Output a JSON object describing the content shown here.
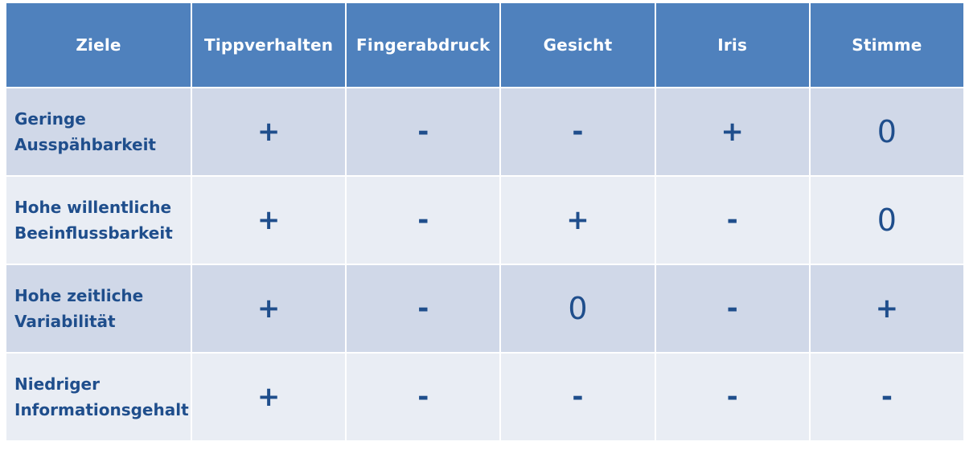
{
  "table": {
    "headers": [
      "Ziele",
      "Tippverhalten",
      "Fingerabdruck",
      "Gesicht",
      "Iris",
      "Stimme"
    ],
    "rows": [
      {
        "goal_lines": [
          "Geringe",
          "Ausspähbarkeit"
        ],
        "ratings": [
          "+",
          "-",
          "-",
          "+",
          "0"
        ]
      },
      {
        "goal_lines": [
          "Hohe willentliche",
          "Beeinflussbarkeit"
        ],
        "ratings": [
          "+",
          "-",
          "+",
          "-",
          "0"
        ]
      },
      {
        "goal_lines": [
          "Hohe zeitliche",
          "Variabilität"
        ],
        "ratings": [
          "+",
          "-",
          "0",
          "-",
          "+"
        ]
      },
      {
        "goal_lines": [
          "Niedriger",
          "Informationsgehalt"
        ],
        "ratings": [
          "+",
          "-",
          "-",
          "-",
          "-"
        ]
      }
    ]
  },
  "colors": {
    "header_bg": "#4f81bd",
    "header_text": "#ffffff",
    "row_band_dark": "#d0d8e8",
    "row_band_light": "#e9edf4",
    "body_text": "#1f4e8c"
  }
}
